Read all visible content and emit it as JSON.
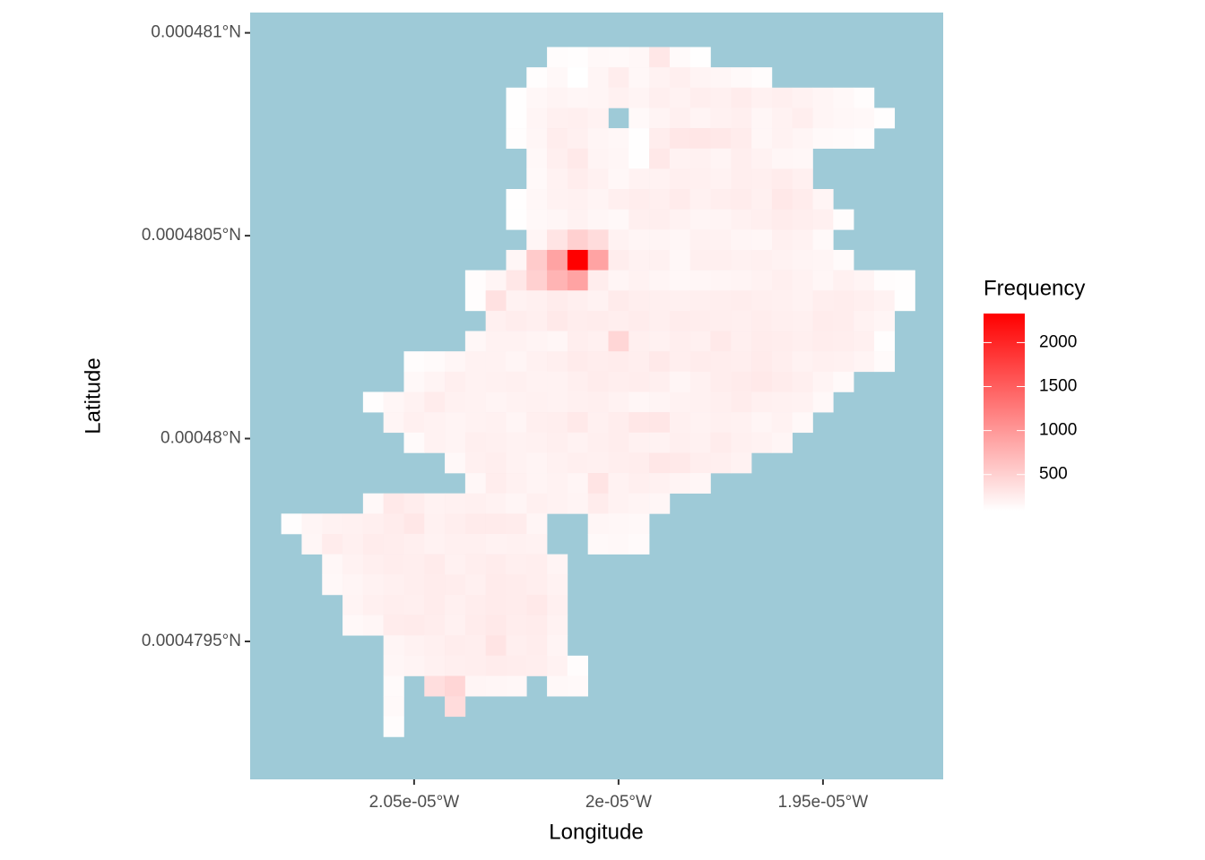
{
  "chart_data": {
    "type": "heatmap",
    "x_label": "Longitude",
    "y_label": "Latitude",
    "legend_title": "Frequency",
    "background": "#9ecad7",
    "low_color": "#ffffff",
    "high_color": "#ff0000",
    "x": [
      -2.08e-05,
      -2.075e-05,
      -2.07e-05,
      -2.065e-05,
      -2.06e-05,
      -2.055e-05,
      -2.05e-05,
      -2.045e-05,
      -2.04e-05,
      -2.035e-05,
      -2.03e-05,
      -2.025e-05,
      -2.02e-05,
      -2.015e-05,
      -2.01e-05,
      -2.005e-05,
      -2e-05,
      -1.995e-05,
      -1.99e-05,
      -1.985e-05,
      -1.98e-05,
      -1.975e-05,
      -1.97e-05,
      -1.965e-05,
      -1.96e-05,
      -1.955e-05,
      -1.95e-05,
      -1.945e-05,
      -1.94e-05,
      -1.935e-05,
      -1.93e-05
    ],
    "y": [
      0.00048094,
      0.00048089,
      0.00048084,
      0.00048079,
      0.00048074,
      0.00048069,
      0.00048064,
      0.00048059,
      0.00048054,
      0.00048049,
      0.00048044,
      0.00048039,
      0.00048034,
      0.00048029,
      0.00048024,
      0.00048019,
      0.00048014,
      0.00048009,
      0.00048004,
      0.00047999,
      0.00047994,
      0.00047989,
      0.00047984,
      0.00047979,
      0.00047974,
      0.00047969,
      0.00047964,
      0.00047959,
      0.00047954,
      0.00047949,
      0.00047944,
      0.00047939,
      0.00047934,
      0.00047929
    ],
    "values": [
      [
        null,
        null,
        null,
        null,
        null,
        null,
        null,
        null,
        null,
        null,
        null,
        null,
        null,
        120,
        110,
        150,
        140,
        160,
        300,
        130,
        100,
        null,
        null,
        null,
        null,
        null,
        null,
        null,
        null,
        null,
        null
      ],
      [
        null,
        null,
        null,
        null,
        null,
        null,
        null,
        null,
        null,
        null,
        null,
        null,
        110,
        150,
        90,
        180,
        250,
        160,
        200,
        230,
        190,
        170,
        140,
        120,
        null,
        null,
        null,
        null,
        null,
        null,
        null
      ],
      [
        null,
        null,
        null,
        null,
        null,
        null,
        null,
        null,
        null,
        null,
        null,
        100,
        160,
        190,
        170,
        180,
        210,
        190,
        230,
        200,
        240,
        220,
        260,
        210,
        230,
        200,
        180,
        150,
        120,
        null,
        null
      ],
      [
        null,
        null,
        null,
        null,
        null,
        null,
        null,
        null,
        null,
        null,
        null,
        100,
        180,
        220,
        230,
        200,
        null,
        140,
        190,
        220,
        190,
        210,
        230,
        170,
        200,
        240,
        180,
        160,
        150,
        110,
        null
      ],
      [
        null,
        null,
        null,
        null,
        null,
        null,
        null,
        null,
        null,
        null,
        null,
        110,
        170,
        250,
        220,
        180,
        160,
        100,
        250,
        300,
        310,
        290,
        260,
        170,
        200,
        180,
        140,
        130,
        120,
        null,
        null
      ],
      [
        null,
        null,
        null,
        null,
        null,
        null,
        null,
        null,
        null,
        null,
        null,
        null,
        150,
        230,
        280,
        190,
        170,
        100,
        290,
        200,
        210,
        190,
        240,
        200,
        170,
        160,
        null,
        null,
        null,
        null,
        null
      ],
      [
        null,
        null,
        null,
        null,
        null,
        null,
        null,
        null,
        null,
        null,
        null,
        null,
        140,
        200,
        250,
        210,
        160,
        200,
        200,
        230,
        220,
        200,
        240,
        230,
        260,
        220,
        null,
        null,
        null,
        null,
        null
      ],
      [
        null,
        null,
        null,
        null,
        null,
        null,
        null,
        null,
        null,
        null,
        null,
        100,
        160,
        200,
        210,
        190,
        230,
        250,
        230,
        270,
        210,
        240,
        260,
        220,
        290,
        260,
        180,
        null,
        null,
        null,
        null
      ],
      [
        null,
        null,
        null,
        null,
        null,
        null,
        null,
        null,
        null,
        null,
        null,
        100,
        150,
        170,
        200,
        170,
        150,
        230,
        240,
        200,
        180,
        190,
        210,
        230,
        260,
        240,
        220,
        120,
        null,
        null,
        null
      ],
      [
        null,
        null,
        null,
        null,
        null,
        null,
        null,
        null,
        null,
        null,
        null,
        null,
        180,
        330,
        500,
        400,
        200,
        180,
        190,
        170,
        210,
        200,
        180,
        170,
        220,
        200,
        140,
        null,
        null,
        null,
        null
      ],
      [
        null,
        null,
        null,
        null,
        null,
        null,
        null,
        null,
        null,
        null,
        null,
        170,
        550,
        900,
        2330,
        900,
        250,
        200,
        210,
        160,
        230,
        230,
        210,
        220,
        200,
        190,
        180,
        130,
        null,
        null,
        null
      ],
      [
        null,
        null,
        null,
        null,
        null,
        null,
        null,
        null,
        null,
        120,
        180,
        300,
        500,
        750,
        900,
        250,
        180,
        200,
        180,
        160,
        170,
        180,
        190,
        200,
        230,
        200,
        170,
        210,
        190,
        120,
        110
      ],
      [
        null,
        null,
        null,
        null,
        null,
        null,
        null,
        null,
        null,
        110,
        350,
        200,
        220,
        260,
        230,
        200,
        270,
        240,
        230,
        220,
        230,
        240,
        250,
        230,
        220,
        200,
        240,
        250,
        230,
        200,
        100
      ],
      [
        null,
        null,
        null,
        null,
        null,
        null,
        null,
        null,
        null,
        null,
        220,
        250,
        230,
        280,
        250,
        260,
        240,
        260,
        230,
        260,
        250,
        240,
        230,
        250,
        230,
        220,
        260,
        250,
        200,
        180,
        null
      ],
      [
        null,
        null,
        null,
        null,
        null,
        null,
        null,
        null,
        null,
        160,
        200,
        200,
        190,
        170,
        240,
        220,
        450,
        230,
        210,
        240,
        220,
        280,
        230,
        260,
        250,
        230,
        250,
        240,
        220,
        110,
        null
      ],
      [
        null,
        null,
        null,
        null,
        null,
        null,
        120,
        130,
        170,
        200,
        200,
        180,
        210,
        230,
        270,
        250,
        260,
        240,
        280,
        240,
        260,
        250,
        240,
        270,
        240,
        200,
        220,
        210,
        190,
        130,
        null
      ],
      [
        null,
        null,
        null,
        null,
        null,
        null,
        150,
        190,
        230,
        200,
        210,
        220,
        200,
        200,
        230,
        260,
        240,
        250,
        230,
        180,
        210,
        250,
        270,
        280,
        260,
        230,
        190,
        140,
        null,
        null,
        null
      ],
      [
        null,
        null,
        null,
        null,
        110,
        170,
        200,
        260,
        210,
        200,
        190,
        200,
        210,
        200,
        220,
        230,
        200,
        170,
        190,
        200,
        210,
        230,
        260,
        220,
        210,
        200,
        150,
        null,
        null,
        null,
        null
      ],
      [
        null,
        null,
        null,
        null,
        null,
        180,
        220,
        200,
        190,
        200,
        210,
        180,
        230,
        240,
        280,
        220,
        250,
        300,
        310,
        220,
        200,
        220,
        210,
        180,
        200,
        150,
        null,
        null,
        null,
        null,
        null
      ],
      [
        null,
        null,
        null,
        null,
        null,
        null,
        130,
        200,
        190,
        230,
        220,
        200,
        210,
        230,
        200,
        230,
        250,
        210,
        200,
        230,
        210,
        260,
        220,
        200,
        180,
        null,
        null,
        null,
        null,
        null,
        null
      ],
      [
        null,
        null,
        null,
        null,
        null,
        null,
        null,
        null,
        150,
        220,
        240,
        200,
        190,
        210,
        230,
        220,
        240,
        250,
        300,
        280,
        240,
        230,
        200,
        null,
        null,
        null,
        null,
        null,
        null,
        null,
        null
      ],
      [
        null,
        null,
        null,
        null,
        null,
        null,
        null,
        null,
        null,
        160,
        250,
        210,
        190,
        200,
        180,
        330,
        200,
        230,
        210,
        190,
        170,
        null,
        null,
        null,
        null,
        null,
        null,
        null,
        null,
        null,
        null
      ],
      [
        null,
        null,
        null,
        null,
        150,
        280,
        250,
        200,
        210,
        220,
        200,
        180,
        220,
        200,
        190,
        260,
        200,
        190,
        170,
        null,
        null,
        null,
        null,
        null,
        null,
        null,
        null,
        null,
        null,
        null,
        null
      ],
      [
        110,
        180,
        200,
        210,
        230,
        260,
        300,
        210,
        240,
        270,
        270,
        260,
        180,
        null,
        null,
        170,
        160,
        150,
        null,
        null,
        null,
        null,
        null,
        null,
        null,
        null,
        null,
        null,
        null,
        null,
        null
      ],
      [
        null,
        170,
        260,
        220,
        260,
        250,
        230,
        200,
        220,
        220,
        200,
        210,
        200,
        null,
        null,
        140,
        150,
        130,
        null,
        null,
        null,
        null,
        null,
        null,
        null,
        null,
        null,
        null,
        null,
        null,
        null
      ],
      [
        null,
        null,
        160,
        200,
        230,
        250,
        240,
        270,
        210,
        240,
        260,
        230,
        240,
        190,
        null,
        null,
        null,
        null,
        null,
        null,
        null,
        null,
        null,
        null,
        null,
        null,
        null,
        null,
        null,
        null,
        null
      ],
      [
        null,
        null,
        150,
        180,
        200,
        220,
        240,
        260,
        250,
        220,
        270,
        260,
        240,
        200,
        null,
        null,
        null,
        null,
        null,
        null,
        null,
        null,
        null,
        null,
        null,
        null,
        null,
        null,
        null,
        null,
        null
      ],
      [
        null,
        null,
        null,
        190,
        220,
        240,
        230,
        260,
        220,
        250,
        270,
        260,
        280,
        220,
        null,
        null,
        null,
        null,
        null,
        null,
        null,
        null,
        null,
        null,
        null,
        null,
        null,
        null,
        null,
        null,
        null
      ],
      [
        null,
        null,
        null,
        150,
        170,
        260,
        270,
        250,
        210,
        260,
        280,
        250,
        260,
        200,
        null,
        null,
        null,
        null,
        null,
        null,
        null,
        null,
        null,
        null,
        null,
        null,
        null,
        null,
        null,
        null,
        null
      ],
      [
        null,
        null,
        null,
        null,
        null,
        180,
        200,
        220,
        250,
        240,
        330,
        230,
        250,
        190,
        null,
        null,
        null,
        null,
        null,
        null,
        null,
        null,
        null,
        null,
        null,
        null,
        null,
        null,
        null,
        null,
        null
      ],
      [
        null,
        null,
        null,
        null,
        null,
        170,
        190,
        210,
        230,
        240,
        260,
        250,
        240,
        200,
        120,
        null,
        null,
        null,
        null,
        null,
        null,
        null,
        null,
        null,
        null,
        null,
        null,
        null,
        null,
        null,
        null
      ],
      [
        null,
        null,
        null,
        null,
        null,
        130,
        null,
        380,
        450,
        180,
        170,
        160,
        null,
        150,
        140,
        null,
        null,
        null,
        null,
        null,
        null,
        null,
        null,
        null,
        null,
        null,
        null,
        null,
        null,
        null,
        null
      ],
      [
        null,
        null,
        null,
        null,
        null,
        140,
        null,
        null,
        400,
        null,
        null,
        null,
        null,
        null,
        null,
        null,
        null,
        null,
        null,
        null,
        null,
        null,
        null,
        null,
        null,
        null,
        null,
        null,
        null,
        null,
        null
      ],
      [
        null,
        null,
        null,
        null,
        null,
        120,
        null,
        null,
        null,
        null,
        null,
        null,
        null,
        null,
        null,
        null,
        null,
        null,
        null,
        null,
        null,
        null,
        null,
        null,
        null,
        null,
        null,
        null,
        null,
        null,
        null
      ]
    ],
    "xlim": [
      -2.0901e-05,
      -1.9206e-05
    ],
    "ylim": [
      0.00047916,
      0.00048105
    ],
    "xticks": [
      {
        "value": -2.05e-05,
        "label": "2.05e-05°W"
      },
      {
        "value": -2e-05,
        "label": "2e-05°W"
      },
      {
        "value": -1.95e-05,
        "label": "1.95e-05°W"
      }
    ],
    "yticks": [
      {
        "value": 0.000481,
        "label": "0.000481°N"
      },
      {
        "value": 0.0004805,
        "label": "0.0004805°N"
      },
      {
        "value": 0.00048,
        "label": "0.00048°N"
      },
      {
        "value": 0.0004795,
        "label": "0.0004795°N"
      }
    ],
    "legend_ticks": [
      500,
      1000,
      1500,
      2000
    ]
  }
}
